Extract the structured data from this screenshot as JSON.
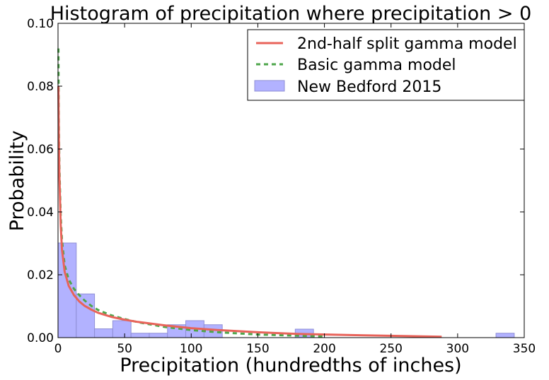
{
  "chart_data": {
    "type": "bar",
    "title": "Histogram of precipitation where precipitation > 0",
    "xlabel": "Precipitation (hundredths of inches)",
    "ylabel": "Probability",
    "xlim": [
      0,
      350
    ],
    "ylim": [
      0,
      0.1
    ],
    "xticks": [
      0,
      50,
      100,
      150,
      200,
      250,
      300,
      350
    ],
    "xtick_labels": [
      "0",
      "50",
      "100",
      "150",
      "200",
      "250",
      "300",
      "350"
    ],
    "yticks": [
      0,
      0.02,
      0.04,
      0.06,
      0.08,
      0.1
    ],
    "ytick_labels": [
      "0.00",
      "0.02",
      "0.04",
      "0.06",
      "0.08",
      "0.10"
    ],
    "grid": false,
    "legend_position": "top-right",
    "histogram": {
      "name": "New Bedford 2015",
      "color": "#b2b2ff",
      "edge_color": "#8f8fd6",
      "bin_width": 13.7,
      "bin_starts": [
        0,
        13.7,
        27.4,
        41.1,
        54.8,
        68.5,
        82.2,
        95.9,
        109.6,
        123.3,
        137.0,
        150.7,
        164.4,
        178.1,
        191.8,
        205.5,
        219.2,
        232.9,
        246.6,
        260.3,
        274.0,
        287.7,
        301.4,
        315.1,
        328.8
      ],
      "values": [
        0.0301,
        0.0139,
        0.0028,
        0.0054,
        0.0014,
        0.0014,
        0.0041,
        0.0054,
        0.0041,
        0,
        0,
        0,
        0,
        0.0027,
        0,
        0,
        0,
        0,
        0,
        0,
        0,
        0,
        0,
        0,
        0.0014
      ]
    },
    "series": [
      {
        "name": "2nd-half split gamma model",
        "color": "#e8635a",
        "style": "solid",
        "x": [
          0.3,
          0.6,
          1,
          2,
          3,
          5,
          8,
          12,
          16,
          20,
          25,
          30,
          40,
          50,
          60,
          80,
          100,
          120,
          150,
          180,
          220,
          260,
          288
        ],
        "values": [
          0.08,
          0.065,
          0.052,
          0.036,
          0.028,
          0.021,
          0.0165,
          0.0135,
          0.0115,
          0.0101,
          0.0089,
          0.0079,
          0.0066,
          0.0057,
          0.005,
          0.0039,
          0.003,
          0.0024,
          0.0017,
          0.0012,
          0.0008,
          0.0005,
          0.0003
        ]
      },
      {
        "name": "Basic gamma model",
        "color": "#4ea64b",
        "style": "dashed",
        "x": [
          0.3,
          0.6,
          1,
          2,
          3,
          5,
          8,
          12,
          16,
          20,
          25,
          30,
          40,
          50,
          60,
          80,
          100,
          120,
          150,
          180,
          200
        ],
        "values": [
          0.092,
          0.07,
          0.055,
          0.039,
          0.031,
          0.023,
          0.0185,
          0.0155,
          0.0135,
          0.0118,
          0.0101,
          0.0088,
          0.0071,
          0.0059,
          0.0049,
          0.0034,
          0.0024,
          0.0017,
          0.001,
          0.0006,
          0.0004
        ]
      }
    ]
  }
}
